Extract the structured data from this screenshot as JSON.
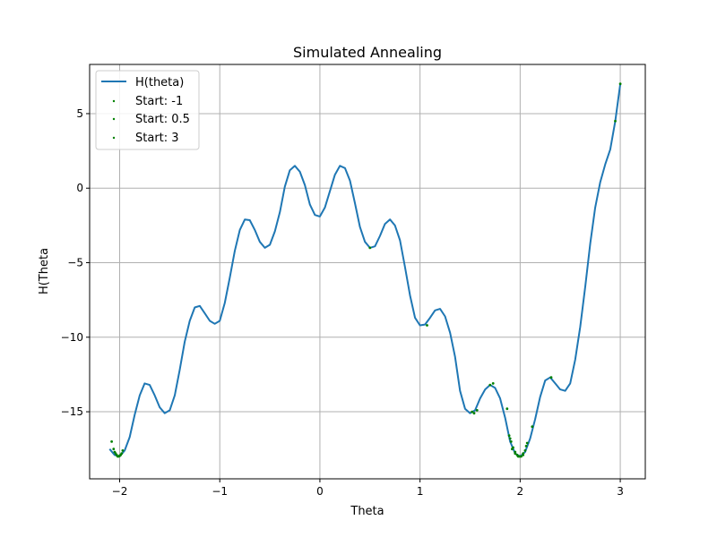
{
  "chart_data": {
    "type": "line",
    "title": "Simulated Annealing",
    "xlabel": "Theta",
    "ylabel": "H(Theta",
    "xlim": [
      -2.3,
      3.25
    ],
    "ylim": [
      -19.5,
      8.3
    ],
    "xticks": [
      -2,
      -1,
      0,
      1,
      2,
      3
    ],
    "yticks": [
      -15,
      -10,
      -5,
      0,
      5
    ],
    "grid": true,
    "legend_position": "top-left",
    "colors": {
      "line": "#1f77b4",
      "points": "#008000",
      "grid": "#b0b0b0"
    },
    "legend": [
      "H(theta)",
      "Start: -1",
      "Start: 0.5",
      "Start: 3"
    ],
    "series": [
      {
        "name": "H(theta)",
        "kind": "line",
        "x": [
          -2.1,
          -2.05,
          -2.0,
          -1.95,
          -1.9,
          -1.85,
          -1.8,
          -1.75,
          -1.7,
          -1.65,
          -1.6,
          -1.55,
          -1.5,
          -1.45,
          -1.4,
          -1.35,
          -1.3,
          -1.25,
          -1.2,
          -1.15,
          -1.1,
          -1.05,
          -1.0,
          -0.95,
          -0.9,
          -0.85,
          -0.8,
          -0.75,
          -0.7,
          -0.65,
          -0.6,
          -0.55,
          -0.5,
          -0.45,
          -0.4,
          -0.35,
          -0.3,
          -0.25,
          -0.2,
          -0.15,
          -0.1,
          -0.05,
          0.0,
          0.05,
          0.1,
          0.15,
          0.2,
          0.25,
          0.3,
          0.35,
          0.4,
          0.45,
          0.5,
          0.55,
          0.6,
          0.65,
          0.7,
          0.75,
          0.8,
          0.85,
          0.9,
          0.95,
          1.0,
          1.05,
          1.1,
          1.15,
          1.2,
          1.25,
          1.3,
          1.35,
          1.4,
          1.45,
          1.5,
          1.55,
          1.6,
          1.65,
          1.7,
          1.75,
          1.8,
          1.85,
          1.9,
          1.95,
          2.0,
          2.05,
          2.1,
          2.15,
          2.2,
          2.25,
          2.3,
          2.35,
          2.4,
          2.45,
          2.5,
          2.55,
          2.6,
          2.65,
          2.7,
          2.75,
          2.8,
          2.85,
          2.9,
          2.95,
          3.0
        ],
        "y": [
          -17.5,
          -17.9,
          -18.0,
          -17.6,
          -16.7,
          -15.2,
          -13.9,
          -13.1,
          -13.2,
          -13.9,
          -14.7,
          -15.1,
          -14.9,
          -13.9,
          -12.2,
          -10.3,
          -8.9,
          -8.0,
          -7.9,
          -8.4,
          -8.9,
          -9.1,
          -8.9,
          -7.7,
          -6.0,
          -4.2,
          -2.8,
          -2.1,
          -2.15,
          -2.8,
          -3.6,
          -4.0,
          -3.8,
          -2.9,
          -1.6,
          0.1,
          1.2,
          1.5,
          1.1,
          0.2,
          -1.1,
          -1.8,
          -1.9,
          -1.3,
          -0.2,
          0.9,
          1.5,
          1.35,
          0.5,
          -1.0,
          -2.6,
          -3.6,
          -4.0,
          -3.9,
          -3.2,
          -2.4,
          -2.1,
          -2.5,
          -3.5,
          -5.3,
          -7.2,
          -8.7,
          -9.2,
          -9.15,
          -8.7,
          -8.2,
          -8.1,
          -8.6,
          -9.7,
          -11.3,
          -13.6,
          -14.8,
          -15.1,
          -14.9,
          -14.1,
          -13.5,
          -13.2,
          -13.4,
          -14.1,
          -15.4,
          -17.0,
          -17.8,
          -18.0,
          -17.7,
          -16.8,
          -15.5,
          -14.0,
          -12.9,
          -12.7,
          -13.1,
          -13.5,
          -13.6,
          -13.1,
          -11.5,
          -9.3,
          -6.6,
          -3.7,
          -1.3,
          0.4,
          1.6,
          2.6,
          4.5,
          7.0
        ]
      },
      {
        "name": "Start: -1",
        "kind": "points",
        "x": [
          -2.08,
          -2.06,
          -2.05,
          -2.04,
          -2.03,
          -2.02,
          -2.01,
          -2.0,
          -1.99,
          -1.98,
          -1.97
        ],
        "y": [
          -17.0,
          -17.5,
          -17.7,
          -17.8,
          -17.9,
          -18.0,
          -18.0,
          -17.95,
          -17.9,
          -17.8,
          -17.6
        ]
      },
      {
        "name": "Start: 0.5",
        "kind": "points",
        "x": [
          0.5,
          1.07,
          1.52,
          1.54,
          1.57,
          1.7,
          1.73,
          1.87,
          1.89,
          1.92,
          1.95,
          1.98,
          2.0,
          2.03,
          2.06
        ],
        "y": [
          -4.0,
          -9.2,
          -15.0,
          -15.1,
          -14.9,
          -13.2,
          -13.1,
          -14.8,
          -16.6,
          -17.5,
          -17.8,
          -18.0,
          -18.0,
          -17.8,
          -17.3
        ]
      },
      {
        "name": "Start: 3",
        "kind": "points",
        "x": [
          3.0,
          2.95,
          2.31,
          2.12,
          2.07,
          2.05,
          2.03,
          2.01,
          1.99,
          1.97,
          1.95,
          1.93,
          1.91,
          1.9
        ],
        "y": [
          7.0,
          4.5,
          -12.7,
          -16.0,
          -17.1,
          -17.6,
          -17.9,
          -18.0,
          -18.0,
          -17.9,
          -17.7,
          -17.4,
          -17.0,
          -16.8
        ]
      }
    ]
  }
}
